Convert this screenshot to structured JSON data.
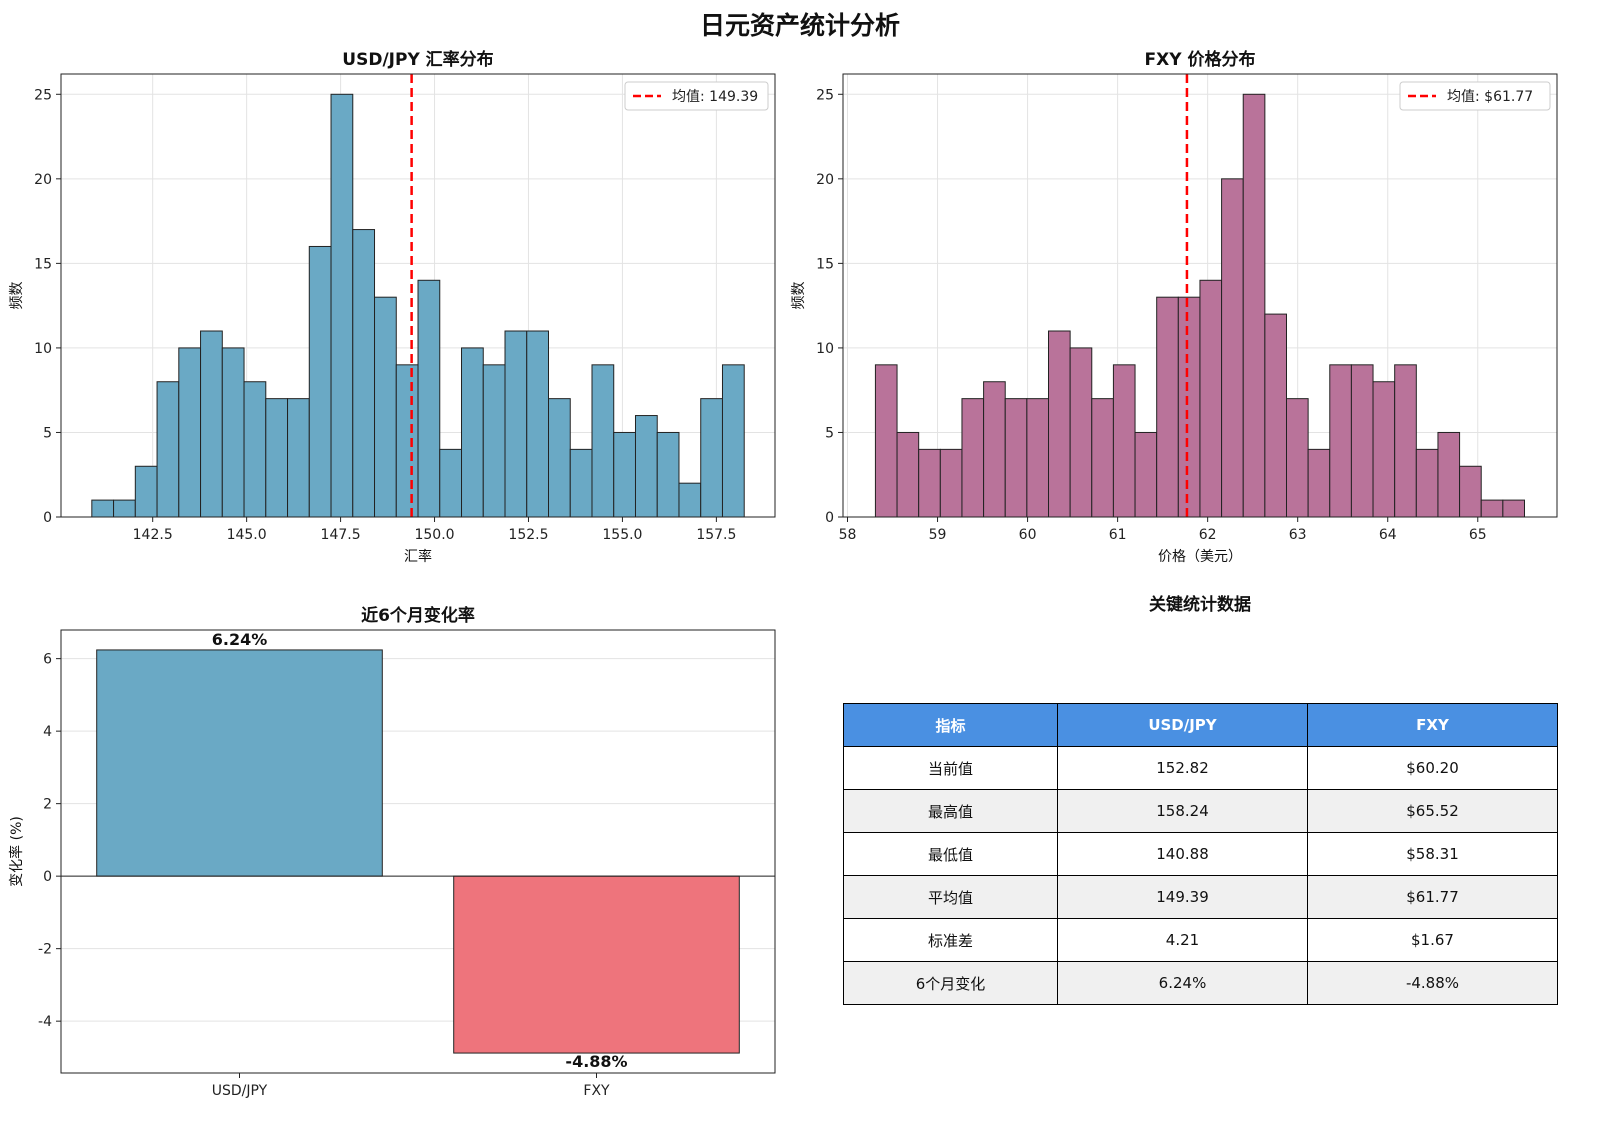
{
  "figure_title": "日元资产统计分析",
  "colors": {
    "usd_bar": "#6aa9c5",
    "fxy_bar": "#b9739a",
    "neg_bar": "#ee747c",
    "mean_line": "#ff0000",
    "table_header": "#4a90e2",
    "table_alt_row": "#f0f0f0"
  },
  "chart_data": [
    {
      "id": "usdjpy-hist",
      "type": "bar",
      "subtype": "histogram",
      "title": "USD/JPY 汇率分布",
      "xlabel": "汇率",
      "ylabel": "频数",
      "xlim": [
        140.06,
        159.06
      ],
      "ylim": [
        0,
        26.2
      ],
      "xticks": [
        142.5,
        145.0,
        147.5,
        150.0,
        152.5,
        155.0,
        157.5
      ],
      "xtick_labels": [
        "142.5",
        "145.0",
        "147.5",
        "150.0",
        "152.5",
        "155.0",
        "157.5"
      ],
      "yticks": [
        0,
        5,
        10,
        15,
        20,
        25
      ],
      "ytick_labels": [
        "0",
        "5",
        "10",
        "15",
        "20",
        "25"
      ],
      "bin_start": 140.88,
      "bin_width": 0.5787,
      "values": [
        1,
        1,
        3,
        8,
        10,
        11,
        10,
        8,
        7,
        7,
        16,
        25,
        17,
        13,
        9,
        14,
        4,
        10,
        9,
        11,
        11,
        7,
        4,
        9,
        5,
        6,
        5,
        2,
        7,
        9
      ],
      "mean": 149.39,
      "legend": "均值: 149.39",
      "legend_loc": "top-right",
      "grid": true
    },
    {
      "id": "fxy-hist",
      "type": "bar",
      "subtype": "histogram",
      "title": "FXY 价格分布",
      "xlabel": "价格（美元）",
      "ylabel": "频数",
      "xlim": [
        57.95,
        65.88
      ],
      "ylim": [
        0,
        26.2
      ],
      "xticks": [
        58,
        59,
        60,
        61,
        62,
        63,
        64,
        65
      ],
      "xtick_labels": [
        "58",
        "59",
        "60",
        "61",
        "62",
        "63",
        "64",
        "65"
      ],
      "yticks": [
        0,
        5,
        10,
        15,
        20,
        25
      ],
      "ytick_labels": [
        "0",
        "5",
        "10",
        "15",
        "20",
        "25"
      ],
      "bin_start": 58.31,
      "bin_width": 0.2403,
      "values": [
        9,
        5,
        4,
        4,
        7,
        8,
        7,
        7,
        11,
        10,
        7,
        9,
        5,
        13,
        13,
        14,
        20,
        25,
        12,
        7,
        4,
        9,
        9,
        8,
        9,
        4,
        5,
        3,
        1,
        1
      ],
      "mean": 61.77,
      "legend": "均值: $61.77",
      "legend_loc": "top-right",
      "grid": true
    },
    {
      "id": "change-bar",
      "type": "bar",
      "title": "近6个月变化率",
      "xlabel": "",
      "ylabel": "变化率 (%)",
      "categories": [
        "USD/JPY",
        "FXY"
      ],
      "values": [
        6.24,
        -4.88
      ],
      "value_labels": [
        "6.24%",
        "-4.88%"
      ],
      "ylim": [
        -5.43,
        6.79
      ],
      "yticks": [
        -4,
        -2,
        0,
        2,
        4,
        6
      ],
      "ytick_labels": [
        "-4",
        "-2",
        "0",
        "2",
        "4",
        "6"
      ],
      "grid": true
    }
  ],
  "stats_table": {
    "title": "关键统计数据",
    "headers": [
      "指标",
      "USD/JPY",
      "FXY"
    ],
    "rows": [
      [
        "当前值",
        "152.82",
        "$60.20"
      ],
      [
        "最高值",
        "158.24",
        "$65.52"
      ],
      [
        "最低值",
        "140.88",
        "$58.31"
      ],
      [
        "平均值",
        "149.39",
        "$61.77"
      ],
      [
        "标准差",
        "4.21",
        "$1.67"
      ],
      [
        "6个月变化",
        "6.24%",
        "-4.88%"
      ]
    ]
  }
}
